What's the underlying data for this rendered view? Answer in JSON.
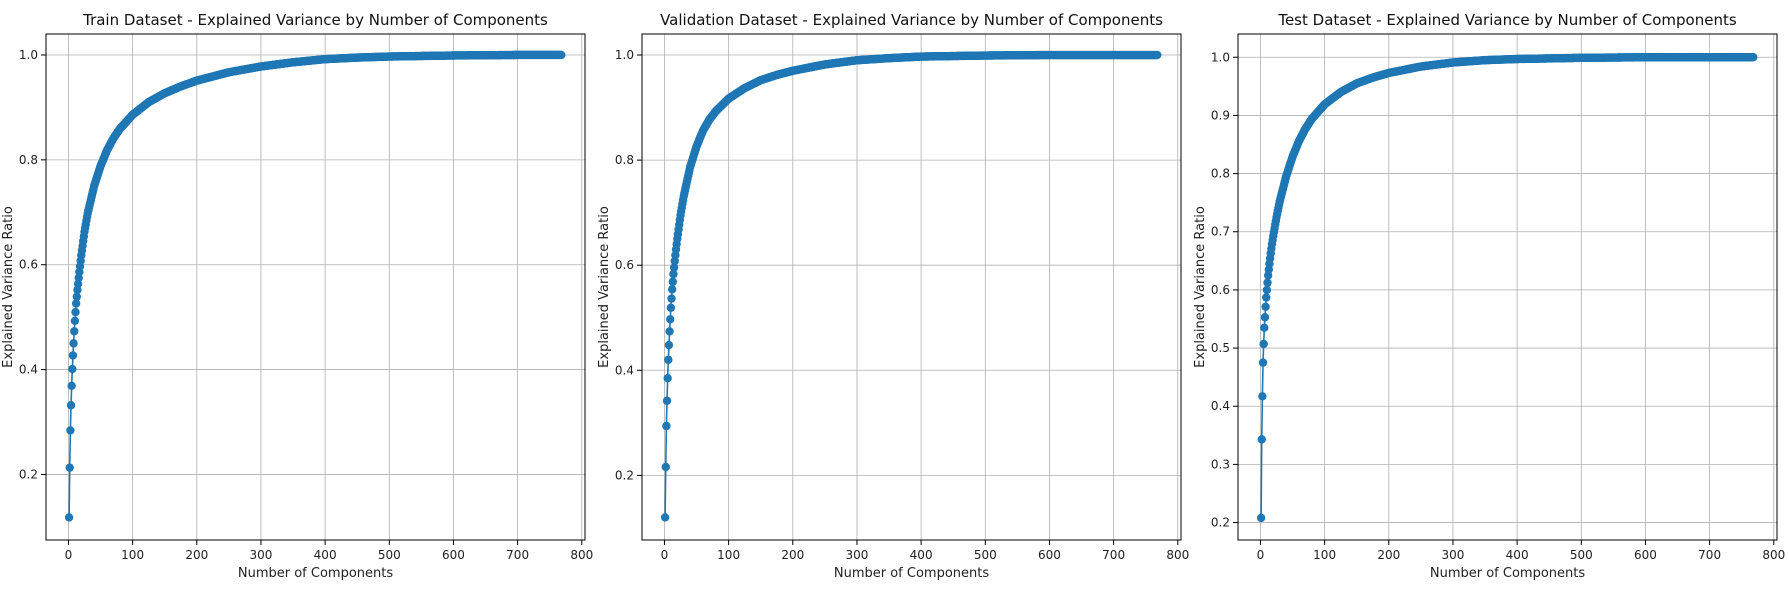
{
  "colors": {
    "series": "#1f77b4",
    "grid": "#b0b0b0",
    "frame": "#000000"
  },
  "chart_data": [
    {
      "type": "line",
      "marker": "circle",
      "title": "Train Dataset - Explained Variance by Number of Components",
      "xlabel": "Number of Components",
      "ylabel": "Explained Variance Ratio",
      "xlim": [
        -35,
        805
      ],
      "ylim": [
        0.075,
        1.04
      ],
      "xticks": [
        0,
        100,
        200,
        300,
        400,
        500,
        600,
        700,
        800
      ],
      "yticks": [
        0.2,
        0.4,
        0.6,
        0.8,
        1.0
      ],
      "ytick_labels": [
        "0.2",
        "0.4",
        "0.6",
        "0.8",
        "1.0"
      ],
      "grid": true,
      "series": [
        {
          "x": [
            1,
            2,
            3,
            4,
            5,
            6,
            7,
            8,
            9,
            10,
            12,
            14,
            16,
            18,
            20,
            25,
            30,
            40,
            50,
            60,
            70,
            80,
            100,
            125,
            150,
            175,
            200,
            250,
            300,
            350,
            400,
            450,
            500,
            550,
            600,
            650,
            700,
            768
          ],
          "y": [
            0.118,
            0.213,
            0.284,
            0.332,
            0.369,
            0.401,
            0.427,
            0.45,
            0.473,
            0.493,
            0.526,
            0.552,
            0.575,
            0.597,
            0.618,
            0.663,
            0.698,
            0.75,
            0.788,
            0.818,
            0.841,
            0.859,
            0.886,
            0.91,
            0.927,
            0.94,
            0.951,
            0.967,
            0.978,
            0.986,
            0.992,
            0.995,
            0.997,
            0.998,
            0.999,
            0.9995,
            1.0,
            1.0
          ]
        }
      ]
    },
    {
      "type": "line",
      "marker": "circle",
      "title": "Validation Dataset - Explained Variance by Number of Components",
      "xlabel": "Number of Components",
      "ylabel": "Explained Variance Ratio",
      "xlim": [
        -35,
        805
      ],
      "ylim": [
        0.077,
        1.04
      ],
      "xticks": [
        0,
        100,
        200,
        300,
        400,
        500,
        600,
        700,
        800
      ],
      "yticks": [
        0.2,
        0.4,
        0.6,
        0.8,
        1.0
      ],
      "ytick_labels": [
        "0.2",
        "0.4",
        "0.6",
        "0.8",
        "1.0"
      ],
      "grid": true,
      "series": [
        {
          "x": [
            1,
            2,
            3,
            4,
            5,
            6,
            7,
            8,
            9,
            10,
            12,
            14,
            16,
            18,
            20,
            25,
            30,
            40,
            50,
            60,
            70,
            80,
            100,
            125,
            150,
            175,
            200,
            250,
            300,
            350,
            400,
            450,
            500,
            550,
            600,
            650,
            700,
            768
          ],
          "y": [
            0.12,
            0.216,
            0.294,
            0.342,
            0.385,
            0.42,
            0.448,
            0.474,
            0.497,
            0.519,
            0.554,
            0.583,
            0.608,
            0.63,
            0.65,
            0.695,
            0.731,
            0.787,
            0.826,
            0.856,
            0.877,
            0.893,
            0.917,
            0.937,
            0.952,
            0.962,
            0.97,
            0.982,
            0.99,
            0.994,
            0.997,
            0.998,
            0.999,
            0.9995,
            1.0,
            1.0,
            1.0,
            1.0
          ]
        }
      ]
    },
    {
      "type": "line",
      "marker": "circle",
      "title": "Test Dataset - Explained Variance by Number of Components",
      "xlabel": "Number of Components",
      "ylabel": "Explained Variance Ratio",
      "xlim": [
        -35,
        805
      ],
      "ylim": [
        0.17,
        1.04
      ],
      "xticks": [
        0,
        100,
        200,
        300,
        400,
        500,
        600,
        700,
        800
      ],
      "yticks": [
        0.2,
        0.3,
        0.4,
        0.5,
        0.6,
        0.7,
        0.8,
        0.9,
        1.0
      ],
      "ytick_labels": [
        "0.2",
        "0.3",
        "0.4",
        "0.5",
        "0.6",
        "0.7",
        "0.8",
        "0.9",
        "1.0"
      ],
      "grid": true,
      "series": [
        {
          "x": [
            1,
            2,
            3,
            4,
            5,
            6,
            7,
            8,
            9,
            10,
            12,
            14,
            16,
            18,
            20,
            25,
            30,
            40,
            50,
            60,
            70,
            80,
            100,
            125,
            150,
            175,
            200,
            250,
            300,
            350,
            400,
            450,
            500,
            550,
            600,
            650,
            700,
            768
          ],
          "y": [
            0.208,
            0.343,
            0.417,
            0.475,
            0.507,
            0.535,
            0.553,
            0.571,
            0.587,
            0.6,
            0.625,
            0.645,
            0.663,
            0.679,
            0.693,
            0.725,
            0.752,
            0.795,
            0.829,
            0.856,
            0.877,
            0.894,
            0.919,
            0.94,
            0.955,
            0.965,
            0.973,
            0.984,
            0.991,
            0.995,
            0.997,
            0.998,
            0.999,
            0.9995,
            1.0,
            1.0,
            1.0,
            1.0
          ]
        }
      ]
    }
  ]
}
